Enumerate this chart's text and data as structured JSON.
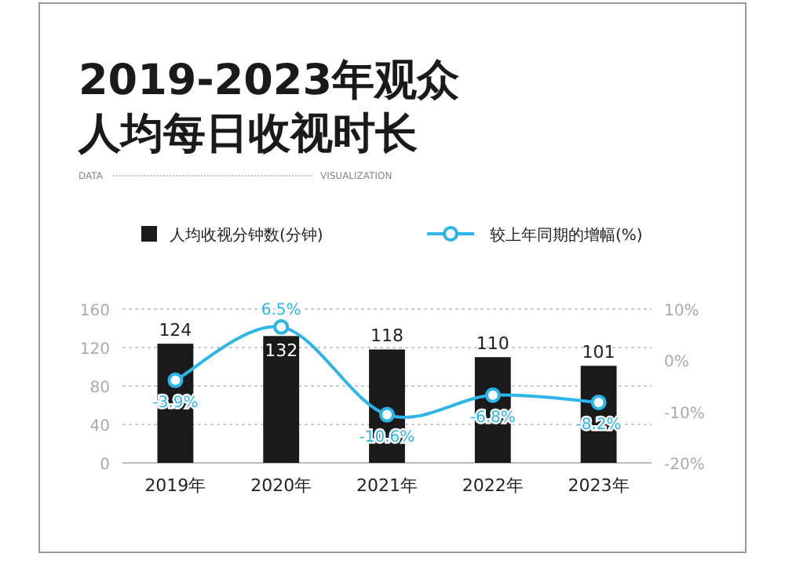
{
  "chart_data": {
    "type": "bar",
    "title": "2019-2023年观众人均每日收视时长",
    "annotations": [
      "DATA",
      "VISUALIZATION"
    ],
    "categories": [
      "2019年",
      "2020年",
      "2021年",
      "2022年",
      "2023年"
    ],
    "series": [
      {
        "name": "人均收视分钟数(分钟)",
        "color": "#1a1a1a",
        "values": [
          124,
          132,
          118,
          110,
          101
        ]
      },
      {
        "name": "较上年同期的增幅(%)",
        "type": "line",
        "axis": "y2",
        "color": "#2cb5e8",
        "marker": "circle",
        "value_labels": [
          "-3.9%",
          "6.5%",
          "-10.6%",
          "-6.8%",
          "-8.2%"
        ],
        "values": [
          -3.9,
          6.5,
          -10.6,
          -6.8,
          -8.2
        ]
      }
    ],
    "data_labels": true,
    "ylim": [
      0,
      160
    ],
    "yticks": [
      0,
      40,
      80,
      120,
      160
    ],
    "y2lim": [
      -20,
      10
    ],
    "y2ticks": [
      {
        "value": -20,
        "label": "-20%"
      },
      {
        "value": -10,
        "label": "-10%"
      },
      {
        "value": 0,
        "label": "0%"
      },
      {
        "value": 10,
        "label": "10%"
      }
    ],
    "grid": "y",
    "legend": "top"
  }
}
